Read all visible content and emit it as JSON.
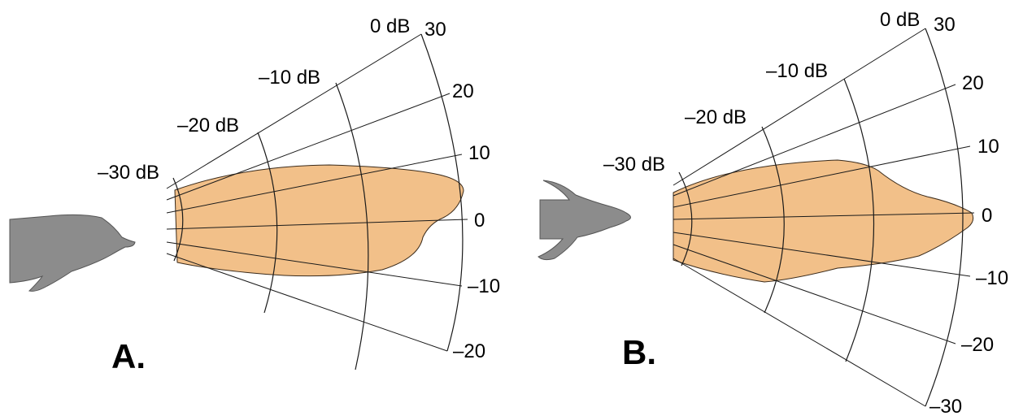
{
  "panels": [
    {
      "label": "A.",
      "db_labels": [
        "0 dB",
        "–10 dB",
        "–20 dB",
        "–30 dB"
      ],
      "angle_labels": [
        "30",
        "20",
        "10",
        "0",
        "–10",
        "–20"
      ],
      "view": "side",
      "fill_color": "#f2c089"
    },
    {
      "label": "B.",
      "db_labels": [
        "0 dB",
        "–10 dB",
        "–20 dB",
        "–30 dB"
      ],
      "angle_labels": [
        "30",
        "20",
        "10",
        "0",
        "–10",
        "–20",
        "–30"
      ],
      "view": "top",
      "fill_color": "#f2c089"
    }
  ],
  "colors": {
    "beam": "#f2c089",
    "dolphin": "#8c8c8c",
    "grid": "#1a1a1a"
  }
}
